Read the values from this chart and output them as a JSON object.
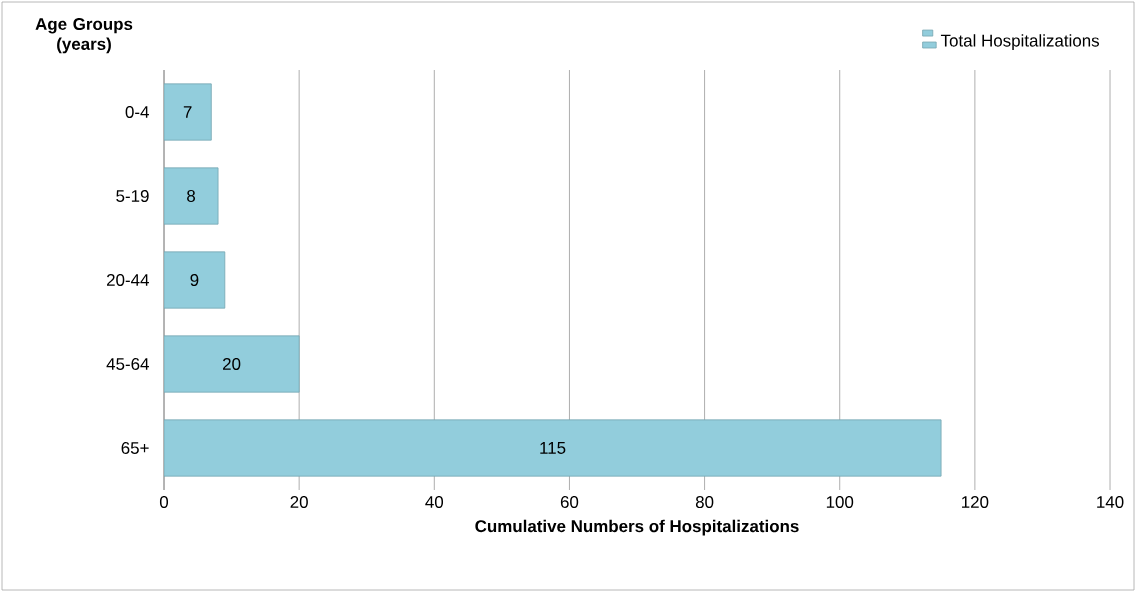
{
  "chart_data": {
    "type": "bar",
    "orientation": "horizontal",
    "categories": [
      "0-4",
      "5-19",
      "20-44",
      "45-64",
      "65+"
    ],
    "series": [
      {
        "name": "Total Hospitalizations",
        "color": "#92cddc",
        "values": [
          7,
          8,
          9,
          20,
          115
        ]
      }
    ],
    "xlim": [
      0,
      140
    ],
    "xticks": [
      0,
      20,
      40,
      60,
      80,
      100,
      120,
      140
    ],
    "xlabel": "Cumulative Numbers of Hospitalizations",
    "ylabel": "Age Groups (years)",
    "grid": "x",
    "legend": "top right",
    "data_labels": true
  }
}
